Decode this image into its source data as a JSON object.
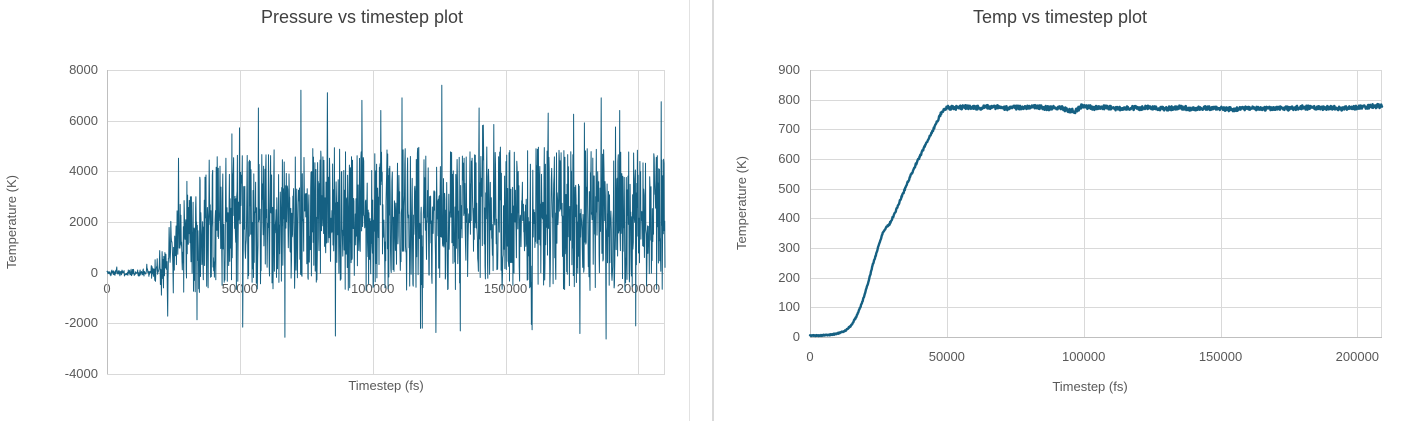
{
  "page": {
    "background": "#ffffff"
  },
  "dividers": {
    "left_chart_border_color": "#e2e2e2",
    "right_chart_border_color": "#d9d9d9"
  },
  "palette": {
    "series_line": "#156082",
    "gridline": "#d9d9d9",
    "axis_line": "#bfbfbf",
    "tick_text": "#595959",
    "title_text": "#404040"
  },
  "chart_data": [
    {
      "type": "line",
      "title": "Pressure vs timestep plot",
      "xlabel": "Timestep (fs)",
      "ylabel": "Temperature (K)",
      "series_name": "Pressure",
      "xlim": [
        0,
        210000
      ],
      "ylim": [
        -4000,
        8000
      ],
      "x_ticks": [
        0,
        50000,
        100000,
        150000,
        200000
      ],
      "y_ticks": [
        8000,
        6000,
        4000,
        2000,
        0,
        -2000,
        -4000
      ],
      "grid": true,
      "legend": "none",
      "x_labels_at_zero": true,
      "line_color": "#156082",
      "line_width": 1,
      "points": 1600,
      "seed": 11,
      "value_clamp": [
        -2620,
        7430
      ],
      "trend_mean_spread": [
        [
          0,
          0,
          120
        ],
        [
          14000,
          0,
          150
        ],
        [
          17000,
          60,
          350
        ],
        [
          20000,
          180,
          750
        ],
        [
          23000,
          550,
          1350
        ],
        [
          26000,
          1050,
          1950
        ],
        [
          30000,
          1500,
          2300
        ],
        [
          36000,
          1800,
          2600
        ],
        [
          45000,
          2000,
          2700
        ],
        [
          60000,
          2100,
          2800
        ],
        [
          120000,
          2150,
          2850
        ],
        [
          210000,
          2100,
          2800
        ]
      ],
      "spikes": [
        [
          57000,
          6500
        ],
        [
          73000,
          7200
        ],
        [
          83000,
          7100
        ],
        [
          96000,
          6800
        ],
        [
          103000,
          6400
        ],
        [
          111000,
          6900
        ],
        [
          126000,
          7400
        ],
        [
          140000,
          6500
        ],
        [
          166000,
          6300
        ],
        [
          186000,
          6900
        ],
        [
          193000,
          6400
        ],
        [
          51000,
          -2150
        ],
        [
          67000,
          -2550
        ],
        [
          86000,
          -2500
        ],
        [
          118000,
          -2200
        ],
        [
          133000,
          -2300
        ],
        [
          160000,
          -2250
        ],
        [
          178000,
          -2400
        ],
        [
          199000,
          -2100
        ]
      ]
    },
    {
      "type": "line",
      "title": "Temp vs timestep plot",
      "xlabel": "Timestep (fs)",
      "ylabel": "Temperature (K)",
      "series_name": "Temperature",
      "xlim": [
        0,
        209000
      ],
      "ylim": [
        0,
        900
      ],
      "x_ticks": [
        0,
        50000,
        100000,
        150000,
        200000
      ],
      "y_ticks": [
        900,
        800,
        700,
        600,
        500,
        400,
        300,
        200,
        100,
        0
      ],
      "grid": true,
      "legend": "none",
      "x_labels_at_zero": false,
      "line_color": "#156082",
      "line_width": 2.4,
      "points": 1400,
      "seed": 5,
      "keypoints": [
        [
          0,
          5
        ],
        [
          4000,
          5
        ],
        [
          8000,
          8
        ],
        [
          11000,
          14
        ],
        [
          13000,
          22
        ],
        [
          15000,
          38
        ],
        [
          17000,
          70
        ],
        [
          19000,
          115
        ],
        [
          21000,
          175
        ],
        [
          23000,
          245
        ],
        [
          25000,
          305
        ],
        [
          26500,
          350
        ],
        [
          28000,
          372
        ],
        [
          29000,
          380
        ],
        [
          30000,
          398
        ],
        [
          31500,
          428
        ],
        [
          33000,
          462
        ],
        [
          34500,
          495
        ],
        [
          36000,
          528
        ],
        [
          37500,
          558
        ],
        [
          39000,
          588
        ],
        [
          40500,
          615
        ],
        [
          42000,
          645
        ],
        [
          43500,
          672
        ],
        [
          45000,
          698
        ],
        [
          46500,
          728
        ],
        [
          48000,
          757
        ],
        [
          49200,
          768
        ],
        [
          50500,
          774
        ],
        [
          53000,
          772
        ],
        [
          57000,
          775
        ],
        [
          62000,
          773
        ],
        [
          67000,
          776
        ],
        [
          72000,
          771
        ],
        [
          77000,
          774
        ],
        [
          82000,
          777
        ],
        [
          87000,
          771
        ],
        [
          91000,
          774
        ],
        [
          94000,
          766
        ],
        [
          97000,
          761
        ],
        [
          99500,
          780
        ],
        [
          101000,
          776
        ],
        [
          104000,
          772
        ],
        [
          108000,
          774
        ],
        [
          112000,
          770
        ],
        [
          116000,
          773
        ],
        [
          120000,
          771
        ],
        [
          125000,
          774
        ],
        [
          130000,
          770
        ],
        [
          135000,
          773
        ],
        [
          140000,
          769
        ],
        [
          145000,
          772
        ],
        [
          150000,
          770
        ],
        [
          155000,
          767
        ],
        [
          160000,
          771
        ],
        [
          165000,
          769
        ],
        [
          170000,
          772
        ],
        [
          175000,
          770
        ],
        [
          180000,
          774
        ],
        [
          185000,
          771
        ],
        [
          190000,
          773
        ],
        [
          195000,
          770
        ],
        [
          199000,
          773
        ],
        [
          203000,
          775
        ],
        [
          206000,
          778
        ],
        [
          209000,
          779
        ]
      ],
      "noise_amp": [
        [
          0,
          1.5
        ],
        [
          15000,
          2
        ],
        [
          30000,
          3
        ],
        [
          46000,
          4
        ],
        [
          50000,
          7
        ],
        [
          209000,
          7
        ]
      ]
    }
  ]
}
